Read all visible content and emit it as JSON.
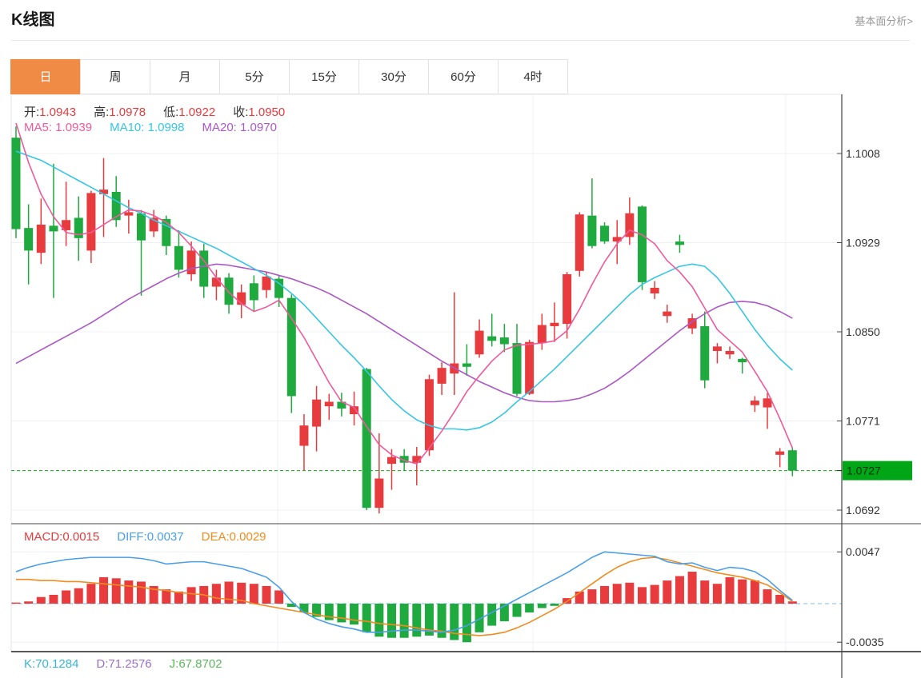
{
  "header": {
    "title": "K线图",
    "link": "基本面分析>"
  },
  "tabs": {
    "items": [
      {
        "label": "日",
        "active": true
      },
      {
        "label": "周",
        "active": false
      },
      {
        "label": "月",
        "active": false
      },
      {
        "label": "5分",
        "active": false
      },
      {
        "label": "15分",
        "active": false
      },
      {
        "label": "30分",
        "active": false
      },
      {
        "label": "60分",
        "active": false
      },
      {
        "label": "4时",
        "active": false
      }
    ]
  },
  "legend": {
    "ohlc": {
      "open_label": "开:",
      "open": "1.0943",
      "high_label": "高:",
      "high": "1.0978",
      "low_label": "低:",
      "low": "1.0922",
      "close_label": "收:",
      "close": "1.0950"
    },
    "ma": [
      {
        "label": "MA5:",
        "value": "1.0939"
      },
      {
        "label": "MA10:",
        "value": "1.0998"
      },
      {
        "label": "MA20:",
        "value": "1.0970"
      }
    ],
    "macd": [
      {
        "label": "MACD:",
        "value": "0.0015"
      },
      {
        "label": "DIFF:",
        "value": "0.0037"
      },
      {
        "label": "DEA:",
        "value": "0.0029"
      }
    ],
    "kdj": [
      {
        "label": "K:",
        "value": "70.1284"
      },
      {
        "label": "D:",
        "value": "71.2576"
      },
      {
        "label": "J:",
        "value": "67.8702"
      }
    ]
  },
  "colors": {
    "up": "#e83b3e",
    "down": "#1eaa3f",
    "badge_bg": "#00a616",
    "badge_text": "#063306",
    "price_dash": "#16a016",
    "ma5": "#ef5a9d",
    "ma10": "#35c6e5",
    "ma20": "#ab58c5",
    "diff": "#4a9fe8",
    "dea": "#f08c1e",
    "macd_zero": "#aecfe8",
    "grid": "#edf1f6",
    "axis": "#444444",
    "tick_text": "#333333",
    "tab_active": "#ef8b44",
    "k_text": "#35b6d9",
    "d_text": "#9a6fd0",
    "j_text": "#5cb85c"
  },
  "chart_data": {
    "type": "candlestick+macd",
    "title": "K线图 日线 (daily candlestick with MA5/MA10/MA20 and MACD)",
    "y_axis": {
      "ticks": [
        1.1008,
        1.0929,
        1.085,
        1.0771,
        1.0692
      ],
      "current_price": 1.0727
    },
    "macd_axis": {
      "ticks": [
        0.0047,
        -0.0035
      ]
    },
    "legend_position": "top-left",
    "grid": true,
    "candles": [
      [
        1.1022,
        1.1032,
        1.0933,
        1.0941
      ],
      [
        1.0942,
        1.0963,
        1.0892,
        1.0922
      ],
      [
        1.092,
        1.0968,
        1.091,
        1.0945
      ],
      [
        1.0944,
        1.0999,
        1.088,
        1.0939
      ],
      [
        1.094,
        1.0983,
        1.0926,
        1.0949
      ],
      [
        1.0951,
        1.097,
        1.0913,
        1.0933
      ],
      [
        1.0922,
        1.0975,
        1.0911,
        1.0973
      ],
      [
        1.0972,
        1.1004,
        1.0934,
        1.0976
      ],
      [
        1.0974,
        1.0988,
        1.0943,
        1.0949
      ],
      [
        1.0953,
        1.0967,
        1.0937,
        1.0956
      ],
      [
        1.0955,
        1.0958,
        1.0882,
        1.0931
      ],
      [
        1.0939,
        1.0958,
        1.0934,
        1.0951
      ],
      [
        1.095,
        1.0953,
        1.0918,
        1.0926
      ],
      [
        1.0926,
        1.094,
        1.0898,
        1.0905
      ],
      [
        1.0901,
        1.093,
        1.0895,
        1.0922
      ],
      [
        1.0922,
        1.0928,
        1.088,
        1.089
      ],
      [
        1.089,
        1.0905,
        1.0878,
        1.0898
      ],
      [
        1.0898,
        1.0902,
        1.0866,
        1.0874
      ],
      [
        1.0874,
        1.0892,
        1.0862,
        1.0885
      ],
      [
        1.0893,
        1.09,
        1.0868,
        1.0878
      ],
      [
        1.0887,
        1.0903,
        1.088,
        1.0899
      ],
      [
        1.0897,
        1.09,
        1.0872,
        1.088
      ],
      [
        1.088,
        1.0883,
        1.0778,
        1.0793
      ],
      [
        1.0749,
        1.0777,
        1.0727,
        1.0767
      ],
      [
        1.0766,
        1.0802,
        1.0744,
        1.079
      ],
      [
        1.0784,
        1.0795,
        1.0772,
        1.0788
      ],
      [
        1.0788,
        1.0796,
        1.0775,
        1.0782
      ],
      [
        1.0777,
        1.0797,
        1.0767,
        1.0784
      ],
      [
        1.0817,
        1.0818,
        1.0692,
        1.0694
      ],
      [
        1.0694,
        1.076,
        1.0689,
        1.072
      ],
      [
        1.0733,
        1.0746,
        1.071,
        1.0739
      ],
      [
        1.074,
        1.0746,
        1.0727,
        1.0734
      ],
      [
        1.0734,
        1.0748,
        1.0714,
        1.074
      ],
      [
        1.0745,
        1.0812,
        1.074,
        1.0808
      ],
      [
        1.0804,
        1.0823,
        1.0794,
        1.0818
      ],
      [
        1.0813,
        1.0885,
        1.0794,
        1.0822
      ],
      [
        1.0822,
        1.0839,
        1.0811,
        1.0819
      ],
      [
        1.083,
        1.0861,
        1.0827,
        1.0851
      ],
      [
        1.0846,
        1.0866,
        1.0837,
        1.0842
      ],
      [
        1.0845,
        1.0857,
        1.0832,
        1.0839
      ],
      [
        1.084,
        1.0857,
        1.0793,
        1.0795
      ],
      [
        1.0795,
        1.0843,
        1.0794,
        1.0841
      ],
      [
        1.084,
        1.0866,
        1.0834,
        1.0856
      ],
      [
        1.0855,
        1.0876,
        1.0841,
        1.0858
      ],
      [
        1.0857,
        1.0903,
        1.0844,
        1.0901
      ],
      [
        1.0904,
        1.0956,
        1.0899,
        1.0954
      ],
      [
        1.0953,
        1.0986,
        1.0924,
        1.0926
      ],
      [
        1.0944,
        1.0947,
        1.0928,
        1.093
      ],
      [
        1.093,
        1.0949,
        1.091,
        1.0934
      ],
      [
        1.0934,
        1.0969,
        1.0927,
        1.0955
      ],
      [
        1.0961,
        1.0962,
        1.0887,
        1.0894
      ],
      [
        1.0884,
        1.0895,
        1.0879,
        1.0889
      ],
      [
        1.0864,
        1.0874,
        1.0858,
        1.0868
      ],
      [
        1.093,
        1.0936,
        1.092,
        1.0927
      ],
      [
        1.0853,
        1.0866,
        1.0848,
        1.0862
      ],
      [
        1.0855,
        1.0868,
        1.08,
        1.0807
      ],
      [
        1.0833,
        1.084,
        1.0822,
        1.0837
      ],
      [
        1.083,
        1.0837,
        1.0826,
        1.0833
      ],
      [
        1.0826,
        1.0827,
        1.0813,
        1.0823
      ],
      [
        1.0785,
        1.0793,
        1.0779,
        1.0789
      ],
      [
        1.0783,
        1.0796,
        1.0764,
        1.0791
      ],
      [
        1.0741,
        1.0747,
        1.073,
        1.0744
      ],
      [
        1.0745,
        1.0747,
        1.0722,
        1.0727
      ]
    ],
    "ma5": [
      1.1035,
      1.1,
      1.0972,
      1.0952,
      1.0938,
      1.0936,
      1.0938,
      1.0945,
      1.0952,
      1.0958,
      1.0957,
      1.0953,
      1.0947,
      1.0938,
      1.0926,
      1.0913,
      1.0898,
      1.0885,
      1.0875,
      1.0868,
      1.0872,
      1.0878,
      1.0862,
      1.0845,
      1.0825,
      1.0805,
      1.0788,
      1.0783,
      1.0766,
      1.075,
      1.0741,
      1.0736,
      1.0733,
      1.0747,
      1.0762,
      1.0779,
      1.0797,
      1.0811,
      1.0824,
      1.0834,
      1.0838,
      1.0839,
      1.084,
      1.0842,
      1.0851,
      1.087,
      1.0892,
      1.0912,
      1.0928,
      1.094,
      1.0936,
      1.0928,
      1.0913,
      1.0903,
      1.089,
      1.0871,
      1.0852,
      1.0842,
      1.0832,
      1.0815,
      1.0797,
      1.0773,
      1.0747
    ],
    "ma10": [
      1.101,
      1.1006,
      1.1002,
      1.0996,
      1.099,
      1.0984,
      1.0978,
      1.0972,
      1.0966,
      1.096,
      1.0955,
      1.0949,
      1.0944,
      1.0939,
      1.0934,
      1.0929,
      1.0924,
      1.0918,
      1.0912,
      1.0906,
      1.09,
      1.0893,
      1.0884,
      1.0874,
      1.0862,
      1.085,
      1.0838,
      1.0827,
      1.0815,
      1.0802,
      1.079,
      1.078,
      1.0772,
      1.0767,
      1.0764,
      1.0764,
      1.0763,
      1.0765,
      1.077,
      1.0778,
      1.0788,
      1.0797,
      1.0807,
      1.0817,
      1.0828,
      1.0839,
      1.085,
      1.0861,
      1.0872,
      1.0883,
      1.0892,
      1.0898,
      1.0903,
      1.0908,
      1.091,
      1.0908,
      1.0898,
      1.0884,
      1.0868,
      1.0852,
      1.0838,
      1.0826,
      1.0816
    ],
    "ma20": [
      1.0822,
      1.0828,
      1.0834,
      1.084,
      1.0846,
      1.0852,
      1.0858,
      1.0865,
      1.0872,
      1.0879,
      1.0885,
      1.0891,
      1.0897,
      1.0902,
      1.0906,
      1.0908,
      1.091,
      1.0909,
      1.0907,
      1.0905,
      1.0903,
      1.09,
      1.0897,
      1.0893,
      1.0889,
      1.0884,
      1.0878,
      1.0872,
      1.0866,
      1.0859,
      1.0852,
      1.0845,
      1.0838,
      1.0831,
      1.0824,
      1.0818,
      1.0812,
      1.0806,
      1.0801,
      1.0796,
      1.0792,
      1.0789,
      1.0788,
      1.0788,
      1.0789,
      1.0791,
      1.0795,
      1.08,
      1.0807,
      1.0815,
      1.0824,
      1.0833,
      1.0842,
      1.0851,
      1.0859,
      1.0866,
      1.0872,
      1.0876,
      1.0877,
      1.0876,
      1.0873,
      1.0868,
      1.0862
    ],
    "macd_hist": [
      0.0001,
      0.0002,
      0.0006,
      0.0008,
      0.0012,
      0.0014,
      0.0018,
      0.0024,
      0.0023,
      0.0021,
      0.002,
      0.0016,
      0.0013,
      0.0011,
      0.0015,
      0.0016,
      0.0018,
      0.002,
      0.0019,
      0.0018,
      0.0016,
      0.0012,
      -0.0003,
      -0.0008,
      -0.0012,
      -0.0015,
      -0.0017,
      -0.0019,
      -0.0026,
      -0.003,
      -0.0031,
      -0.0031,
      -0.003,
      -0.0029,
      -0.0031,
      -0.0033,
      -0.0035,
      -0.0026,
      -0.002,
      -0.0016,
      -0.0012,
      -0.0008,
      -0.0004,
      -0.0002,
      0.0005,
      0.0011,
      0.0013,
      0.0016,
      0.0018,
      0.0019,
      0.0015,
      0.0017,
      0.0021,
      0.0025,
      0.0029,
      0.0021,
      0.0018,
      0.0024,
      0.0022,
      0.0021,
      0.0013,
      0.0008,
      0.0002
    ],
    "diff": [
      0.0029,
      0.0033,
      0.0036,
      0.0038,
      0.004,
      0.0041,
      0.0042,
      0.0042,
      0.0042,
      0.0042,
      0.0041,
      0.0039,
      0.0036,
      0.0037,
      0.0038,
      0.0038,
      0.0036,
      0.0034,
      0.0032,
      0.0028,
      0.0024,
      0.0015,
      0.0002,
      -0.0008,
      -0.0014,
      -0.0018,
      -0.0021,
      -0.0023,
      -0.0026,
      -0.0026,
      -0.0025,
      -0.0024,
      -0.0024,
      -0.0025,
      -0.0026,
      -0.0024,
      -0.002,
      -0.0014,
      -0.0008,
      -0.0002,
      0.0004,
      0.001,
      0.0016,
      0.0022,
      0.0028,
      0.0035,
      0.0042,
      0.0047,
      0.0046,
      0.0045,
      0.0044,
      0.0043,
      0.0038,
      0.0036,
      0.0037,
      0.0033,
      0.003,
      0.0033,
      0.0032,
      0.0029,
      0.0022,
      0.0012,
      0.0003
    ],
    "dea": [
      0.0022,
      0.0022,
      0.0021,
      0.0021,
      0.002,
      0.002,
      0.0019,
      0.0018,
      0.0017,
      0.0016,
      0.0015,
      0.0013,
      0.0012,
      0.001,
      0.0009,
      0.0008,
      0.0005,
      0.0004,
      0.0003,
      0.0,
      -0.0002,
      -0.0004,
      -0.0006,
      -0.0008,
      -0.001,
      -0.0012,
      -0.0013,
      -0.0015,
      -0.0016,
      -0.0018,
      -0.0019,
      -0.002,
      -0.0022,
      -0.0024,
      -0.0025,
      -0.0027,
      -0.0028,
      -0.0029,
      -0.0028,
      -0.0026,
      -0.0022,
      -0.0017,
      -0.0011,
      -0.0005,
      0.0002,
      0.001,
      0.0018,
      0.0026,
      0.0033,
      0.0038,
      0.0041,
      0.0042,
      0.004,
      0.0037,
      0.0034,
      0.0031,
      0.0028,
      0.0026,
      0.0024,
      0.0021,
      0.0017,
      0.001,
      0.0002
    ]
  }
}
